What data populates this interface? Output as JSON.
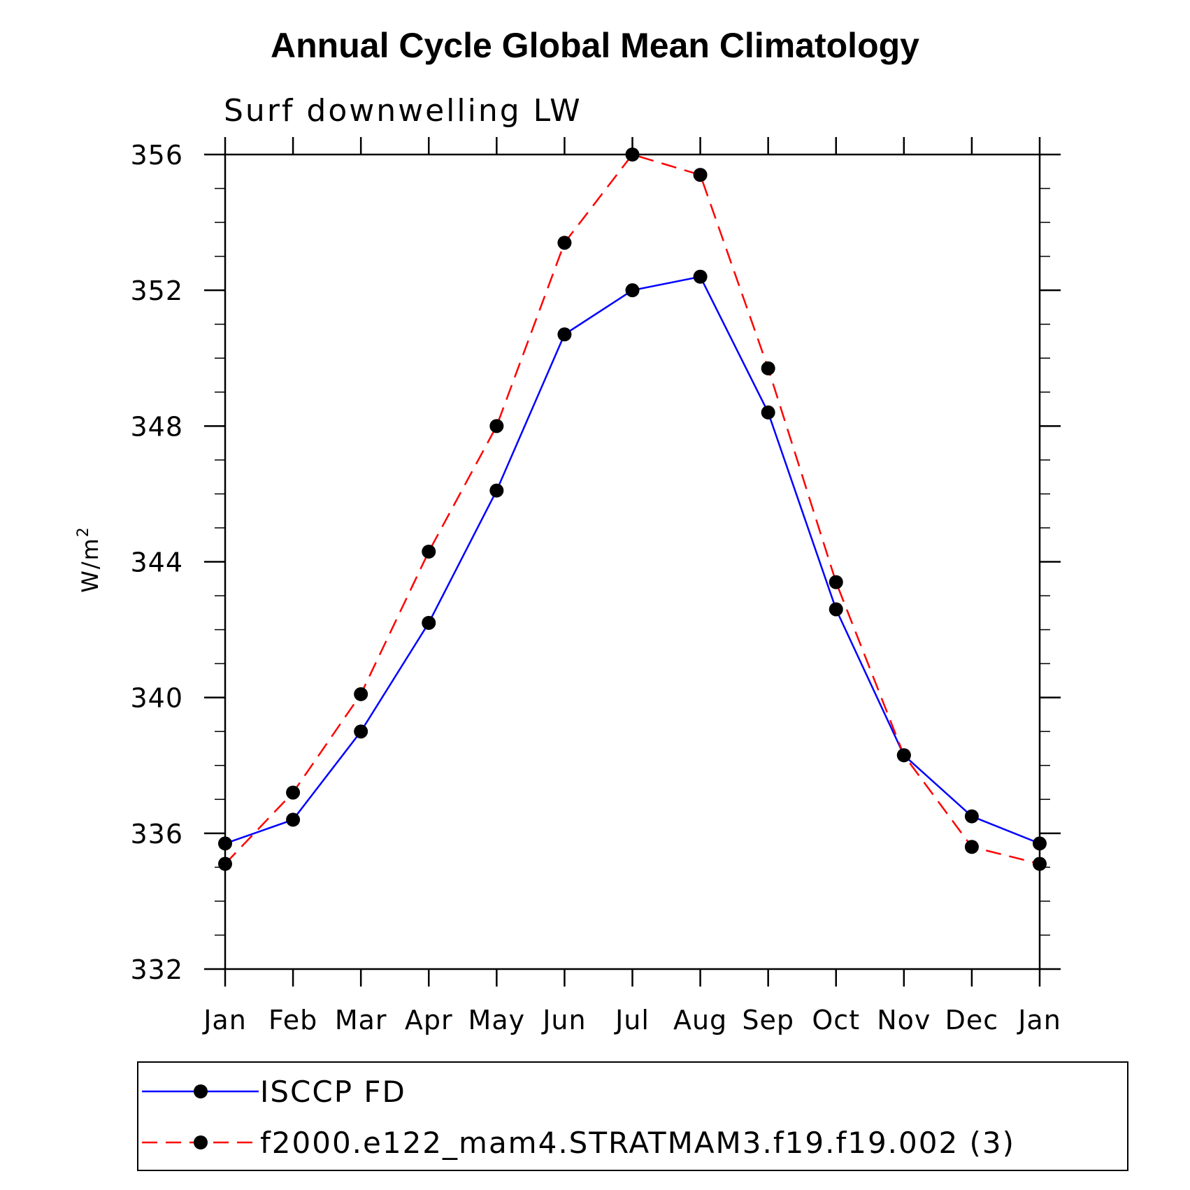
{
  "chart_data": {
    "type": "line",
    "title": "Annual Cycle Global Mean Climatology",
    "subtitle": "Surf downwelling LW",
    "ylabel": "W/m",
    "ylabel_superscript": "2",
    "categories": [
      "Jan",
      "Feb",
      "Mar",
      "Apr",
      "May",
      "Jun",
      "Jul",
      "Aug",
      "Sep",
      "Oct",
      "Nov",
      "Dec",
      "Jan"
    ],
    "ylim": [
      332,
      356
    ],
    "yticks": [
      332,
      336,
      340,
      344,
      348,
      352,
      356
    ],
    "ytick_labels": [
      "332",
      "336",
      "340",
      "344",
      "348",
      "352",
      "356"
    ],
    "grid": false,
    "legend_position": "bottom",
    "series": [
      {
        "name": "ISCCP FD",
        "color": "#0000ff",
        "line_style": "solid",
        "marker": "filled-circle",
        "values": [
          335.7,
          336.4,
          339.0,
          342.2,
          346.1,
          350.7,
          352.0,
          352.4,
          348.4,
          342.6,
          338.3,
          336.5,
          335.7
        ]
      },
      {
        "name": "f2000.e122_mam4.STRATMAM3.f19.f19.002 (3)",
        "color": "#ff0000",
        "line_style": "dashed",
        "marker": "filled-circle",
        "values": [
          335.1,
          337.2,
          340.1,
          344.3,
          348.0,
          353.4,
          356.0,
          355.4,
          349.7,
          343.4,
          338.3,
          335.6,
          335.1
        ]
      }
    ]
  }
}
